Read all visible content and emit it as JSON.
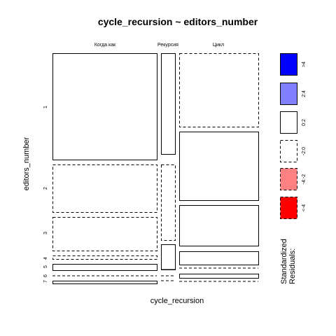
{
  "chart_data": {
    "type": "mosaic",
    "title": "cycle_recursion ~ editors_number",
    "xlabel": "cycle_recursion",
    "ylabel": "editors_number",
    "column_categories": [
      "Когда как",
      "Рекурсия",
      "Цикл"
    ],
    "row_categories": [
      "1",
      "2",
      "3",
      "4",
      "5",
      "6",
      "7"
    ],
    "cells": [
      {
        "column": "Когда как",
        "row": "1",
        "residual_level": "0:2"
      },
      {
        "column": "Рекурсия",
        "row": "1",
        "residual_level": "0:2"
      },
      {
        "column": "Цикл",
        "row": "1",
        "residual_level": "-2:0"
      },
      {
        "column": "Когда как",
        "row": "2",
        "residual_level": "-2:0"
      },
      {
        "column": "Рекурсия",
        "row": "2",
        "residual_level": "-2:0"
      },
      {
        "column": "Цикл",
        "row": "2",
        "residual_level": "0:2"
      },
      {
        "column": "Когда как",
        "row": "3",
        "residual_level": "-2:0"
      },
      {
        "column": "Рекурсия",
        "row": "3",
        "residual_level": "0:2"
      },
      {
        "column": "Цикл",
        "row": "3",
        "residual_level": "0:2"
      },
      {
        "column": "Когда как",
        "row": "4",
        "residual_level": "-2:0"
      },
      {
        "column": "Рекурсия",
        "row": "4",
        "residual_level": "0:2"
      },
      {
        "column": "Цикл",
        "row": "4",
        "residual_level": "0:2"
      },
      {
        "column": "Когда как",
        "row": "5",
        "residual_level": "0:2"
      },
      {
        "column": "Рекурсия",
        "row": "5",
        "residual_level": "0:2"
      },
      {
        "column": "Цикл",
        "row": "5",
        "residual_level": "-2:0"
      },
      {
        "column": "Когда как",
        "row": "6",
        "residual_level": "-2:0"
      },
      {
        "column": "Рекурсия",
        "row": "6",
        "residual_level": "-2:0"
      },
      {
        "column": "Цикл",
        "row": "6",
        "residual_level": "0:2"
      },
      {
        "column": "Когда как",
        "row": "7",
        "residual_level": "0:2"
      },
      {
        "column": "Рекурсия",
        "row": "7",
        "residual_level": "-2:0"
      },
      {
        "column": "Цикл",
        "row": "7",
        "residual_level": "-2:0"
      }
    ],
    "legend": {
      "title_lines": [
        "Standardized",
        "Residuals:"
      ],
      "placement": "right",
      "items": [
        {
          "label": ">4",
          "color": "#0000ff",
          "border": "solid"
        },
        {
          "label": "2:4",
          "color": "#8080ff",
          "border": "solid"
        },
        {
          "label": "0:2",
          "color": "#ffffff",
          "border": "solid"
        },
        {
          "label": "-2:0",
          "color": "#ffffff",
          "border": "dashed"
        },
        {
          "label": "-4:-2",
          "color": "#ff8080",
          "border": "dashed"
        },
        {
          "label": "<-4",
          "color": "#ff0000",
          "border": "dashed"
        }
      ]
    }
  }
}
